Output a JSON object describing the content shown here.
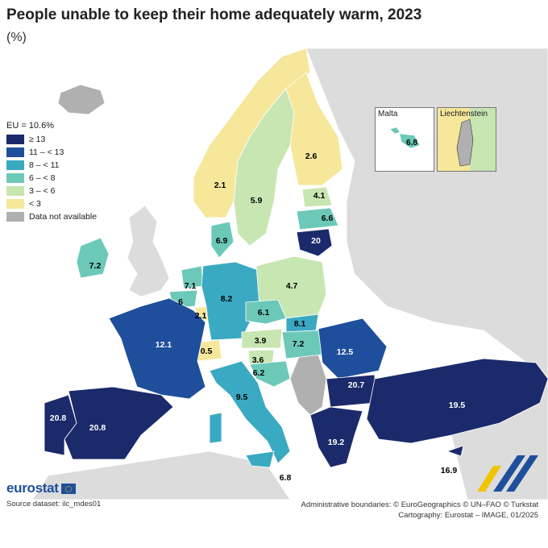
{
  "title": "People unable to keep their home adequately warm, 2023",
  "subtitle": "(%)",
  "legend": {
    "title": "EU = 10.6%",
    "items": [
      {
        "label": "≥ 13",
        "color": "#1b2a6b"
      },
      {
        "label": "11 – < 13",
        "color": "#1f4f9c"
      },
      {
        "label": "8 – < 11",
        "color": "#3aaac2"
      },
      {
        "label": "6 – < 8",
        "color": "#6cc9b8"
      },
      {
        "label": "3 – < 6",
        "color": "#c8e6b2"
      },
      {
        "label": "< 3",
        "color": "#f6e79a"
      },
      {
        "label": "Data not available",
        "color": "#b0b0b0"
      }
    ]
  },
  "map": {
    "non_eu_color": "#dcdcdc",
    "sea_color": "#ffffff",
    "regions": [
      {
        "country": "Iceland",
        "value": "",
        "cls": "na"
      },
      {
        "country": "Norway",
        "value": "2.1",
        "cls": "lt3"
      },
      {
        "country": "Sweden",
        "value": "5.9",
        "cls": "c3to6"
      },
      {
        "country": "Finland",
        "value": "2.6",
        "cls": "lt3"
      },
      {
        "country": "Estonia",
        "value": "4.1",
        "cls": "c3to6"
      },
      {
        "country": "Latvia",
        "value": "6.6",
        "cls": "c6to8"
      },
      {
        "country": "Lithuania",
        "value": "20",
        "cls": "ge13"
      },
      {
        "country": "Denmark",
        "value": "6.9",
        "cls": "c6to8"
      },
      {
        "country": "Ireland",
        "value": "7.2",
        "cls": "c6to8"
      },
      {
        "country": "Netherlands",
        "value": "7.1",
        "cls": "c6to8"
      },
      {
        "country": "Belgium",
        "value": "6",
        "cls": "c6to8"
      },
      {
        "country": "Luxembourg",
        "value": "2.1",
        "cls": "lt3"
      },
      {
        "country": "Germany",
        "value": "8.2",
        "cls": "c8to11"
      },
      {
        "country": "Poland",
        "value": "4.7",
        "cls": "c3to6"
      },
      {
        "country": "Czechia",
        "value": "6.1",
        "cls": "c6to8"
      },
      {
        "country": "Slovakia",
        "value": "8.1",
        "cls": "c8to11"
      },
      {
        "country": "Austria",
        "value": "3.9",
        "cls": "c3to6"
      },
      {
        "country": "Hungary",
        "value": "7.2",
        "cls": "c6to8"
      },
      {
        "country": "Switzerland",
        "value": "0.5",
        "cls": "lt3"
      },
      {
        "country": "Slovenia",
        "value": "3.6",
        "cls": "c3to6"
      },
      {
        "country": "Croatia",
        "value": "6.2",
        "cls": "c6to8"
      },
      {
        "country": "France",
        "value": "12.1",
        "cls": "c11to13"
      },
      {
        "country": "Italy",
        "value": "9.5",
        "cls": "c8to11"
      },
      {
        "country": "Romania",
        "value": "12.5",
        "cls": "c11to13"
      },
      {
        "country": "Bulgaria",
        "value": "20.7",
        "cls": "ge13"
      },
      {
        "country": "Greece",
        "value": "19.2",
        "cls": "ge13"
      },
      {
        "country": "Türkiye",
        "value": "19.5",
        "cls": "ge13"
      },
      {
        "country": "Spain",
        "value": "20.8",
        "cls": "ge13"
      },
      {
        "country": "Portugal",
        "value": "20.8",
        "cls": "ge13"
      },
      {
        "country": "Cyprus",
        "value": "16.9",
        "cls": "ge13"
      },
      {
        "country": "Malta",
        "value": "6.8",
        "cls": "c6to8"
      },
      {
        "country": "Serbia/Western Balkans",
        "value": "",
        "cls": "na"
      },
      {
        "country": "Tunisia/Sicily strait",
        "value": "6.8",
        "cls": ""
      }
    ]
  },
  "insets": {
    "malta": {
      "label": "Malta",
      "value": "6.8"
    },
    "liechtenstein": {
      "label": "Liechtenstein"
    }
  },
  "footer": {
    "logo": "eurostat",
    "source": "Source dataset: ilc_mdes01",
    "boundaries": "Administrative boundaries: © EuroGeographics © UN–FAO © Turkstat",
    "cartography": "Cartography: Eurostat – IMAGE, 01/2025"
  }
}
